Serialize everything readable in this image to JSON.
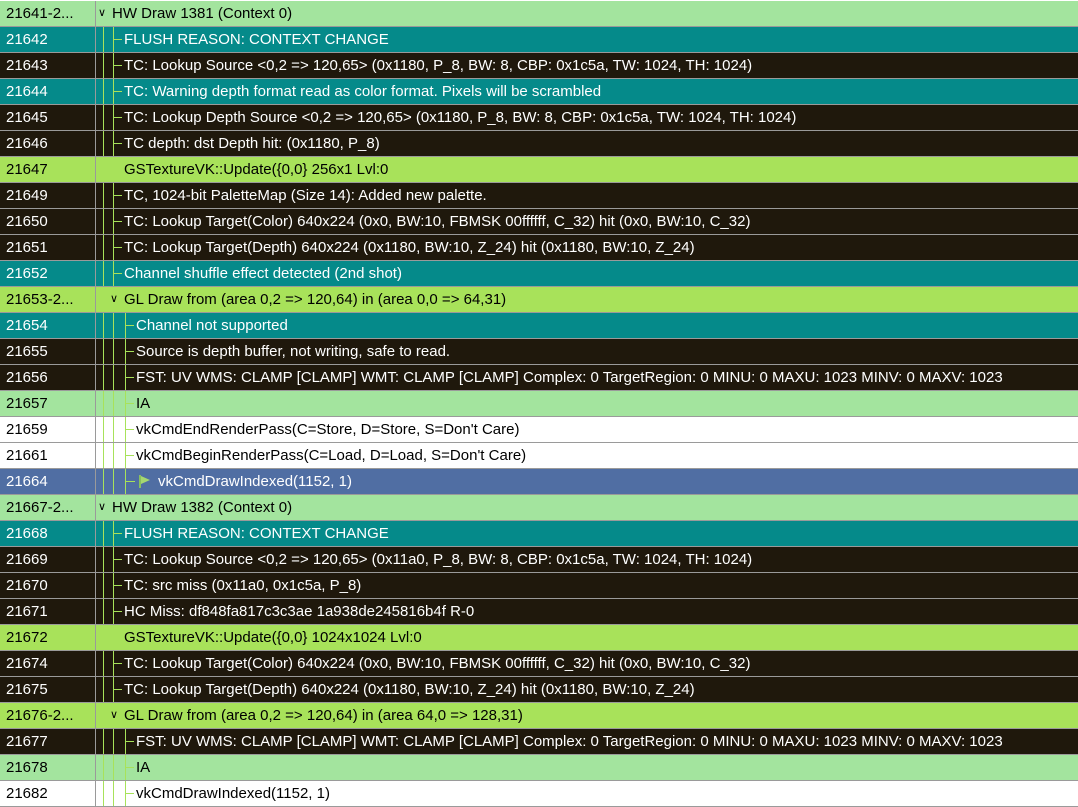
{
  "colors": {
    "green": "#a3e49e",
    "teal": "#058a8a",
    "black": "#1f180c",
    "lime": "#a8e25a",
    "white": "#ffffff",
    "blue": "#506ea3",
    "tree_line": "#a8e25a"
  },
  "rows": [
    {
      "id": "21641-2...",
      "text": "HW Draw 1381 (Context 0)",
      "style": "green",
      "depth": 0,
      "chevron": true
    },
    {
      "id": "21642",
      "text": "FLUSH REASON: CONTEXT CHANGE",
      "style": "teal",
      "depth": 1
    },
    {
      "id": "21643",
      "text": "TC: Lookup Source <0,2 => 120,65> (0x1180, P_8, BW: 8, CBP: 0x1c5a, TW: 1024, TH: 1024)",
      "style": "black",
      "depth": 1
    },
    {
      "id": "21644",
      "text": "TC: Warning depth format read as color format. Pixels will be scrambled",
      "style": "teal",
      "depth": 1
    },
    {
      "id": "21645",
      "text": "TC: Lookup Depth Source <0,2 => 120,65> (0x1180, P_8, BW: 8, CBP: 0x1c5a, TW: 1024, TH: 1024)",
      "style": "black",
      "depth": 1
    },
    {
      "id": "21646",
      "text": "TC depth: dst Depth hit: (0x1180, P_8)",
      "style": "black",
      "depth": 1
    },
    {
      "id": "21647",
      "text": "GSTextureVK::Update({0,0} 256x1 Lvl:0",
      "style": "lime",
      "depth": 1
    },
    {
      "id": "21649",
      "text": "TC, 1024-bit PaletteMap (Size 14): Added new palette.",
      "style": "black",
      "depth": 1
    },
    {
      "id": "21650",
      "text": "TC: Lookup Target(Color) 640x224 (0x0, BW:10, FBMSK 00ffffff, C_32) hit (0x0, BW:10, C_32)",
      "style": "black",
      "depth": 1
    },
    {
      "id": "21651",
      "text": "TC: Lookup Target(Depth) 640x224 (0x1180, BW:10, Z_24) hit (0x1180, BW:10, Z_24)",
      "style": "black",
      "depth": 1
    },
    {
      "id": "21652",
      "text": "Channel shuffle effect detected (2nd shot)",
      "style": "teal",
      "depth": 1
    },
    {
      "id": "21653-2...",
      "text": "GL Draw from (area 0,2 => 120,64) in (area 0,0 => 64,31)",
      "style": "lime",
      "depth": 1,
      "chevron": true
    },
    {
      "id": "21654",
      "text": "Channel not supported",
      "style": "teal",
      "depth": 2
    },
    {
      "id": "21655",
      "text": "Source is depth buffer, not writing, safe to read.",
      "style": "black",
      "depth": 2
    },
    {
      "id": "21656",
      "text": "FST: UV WMS: CLAMP [CLAMP] WMT: CLAMP [CLAMP] Complex: 0 TargetRegion: 0 MINU: 0 MAXU: 1023 MINV: 0 MAXV: 1023",
      "style": "black",
      "depth": 2
    },
    {
      "id": "21657",
      "text": "IA",
      "style": "green",
      "depth": 2
    },
    {
      "id": "21659",
      "text": "vkCmdEndRenderPass(C=Store, D=Store, S=Don't Care)",
      "style": "white",
      "depth": 2
    },
    {
      "id": "21661",
      "text": "vkCmdBeginRenderPass(C=Load, D=Load, S=Don't Care)",
      "style": "white",
      "depth": 2
    },
    {
      "id": "21664",
      "text": "vkCmdDrawIndexed(1152, 1)",
      "style": "blue",
      "depth": 2,
      "flag": true
    },
    {
      "id": "21667-2...",
      "text": "HW Draw 1382 (Context 0)",
      "style": "green",
      "depth": 0,
      "chevron": true
    },
    {
      "id": "21668",
      "text": "FLUSH REASON: CONTEXT CHANGE",
      "style": "teal",
      "depth": 1
    },
    {
      "id": "21669",
      "text": "TC: Lookup Source <0,2 => 120,65> (0x11a0, P_8, BW: 8, CBP: 0x1c5a, TW: 1024, TH: 1024)",
      "style": "black",
      "depth": 1
    },
    {
      "id": "21670",
      "text": "TC: src miss (0x11a0, 0x1c5a, P_8)",
      "style": "black",
      "depth": 1
    },
    {
      "id": "21671",
      "text": "HC Miss: df848fa817c3c3ae 1a938de245816b4f R-0",
      "style": "black",
      "depth": 1
    },
    {
      "id": "21672",
      "text": "GSTextureVK::Update({0,0} 1024x1024 Lvl:0",
      "style": "lime",
      "depth": 1
    },
    {
      "id": "21674",
      "text": "TC: Lookup Target(Color) 640x224 (0x0, BW:10, FBMSK 00ffffff, C_32) hit (0x0, BW:10, C_32)",
      "style": "black",
      "depth": 1
    },
    {
      "id": "21675",
      "text": "TC: Lookup Target(Depth) 640x224 (0x1180, BW:10, Z_24) hit (0x1180, BW:10, Z_24)",
      "style": "black",
      "depth": 1
    },
    {
      "id": "21676-2...",
      "text": "GL Draw from (area 0,2 => 120,64) in (area 64,0 => 128,31)",
      "style": "lime",
      "depth": 1,
      "chevron": true
    },
    {
      "id": "21677",
      "text": "FST: UV WMS: CLAMP [CLAMP] WMT: CLAMP [CLAMP] Complex: 0 TargetRegion: 0 MINU: 0 MAXU: 1023 MINV: 0 MAXV: 1023",
      "style": "black",
      "depth": 2
    },
    {
      "id": "21678",
      "text": "IA",
      "style": "green",
      "depth": 2
    },
    {
      "id": "21682",
      "text": "vkCmdDrawIndexed(1152, 1)",
      "style": "white",
      "depth": 2
    }
  ]
}
